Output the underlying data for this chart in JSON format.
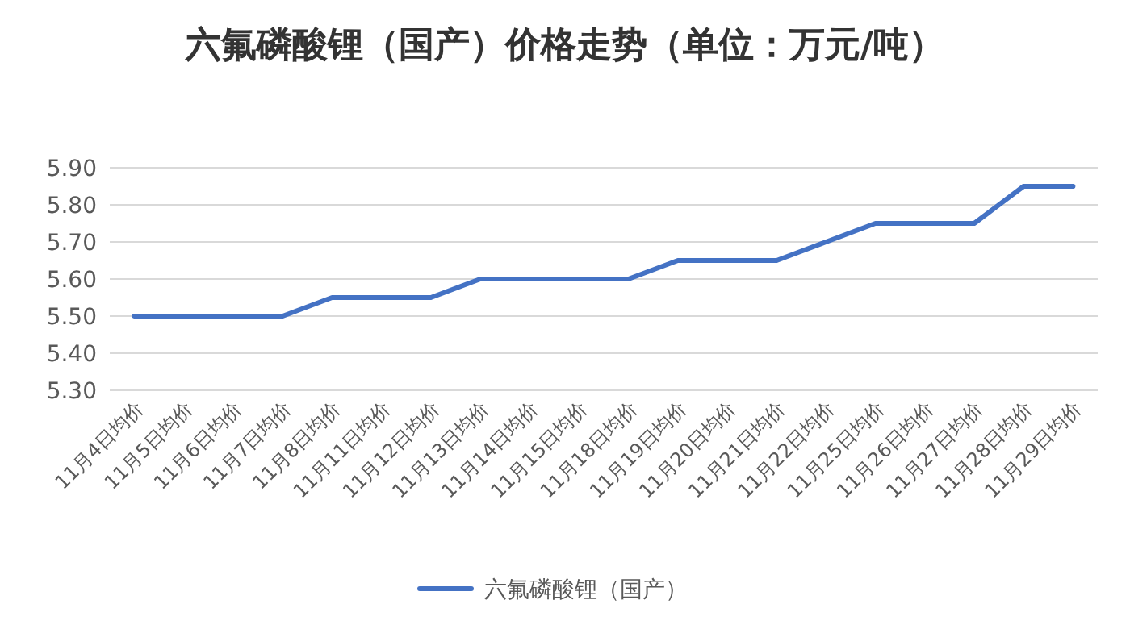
{
  "chart_data": {
    "type": "line",
    "title": "六氟磷酸锂（国产）价格走势（单位：万元/吨）",
    "categories": [
      "11月4日均价",
      "11月5日均价",
      "11月6日均价",
      "11月7日均价",
      "11月8日均价",
      "11月11日均价",
      "11月12日均价",
      "11月13日均价",
      "11月14日均价",
      "11月15日均价",
      "11月18日均价",
      "11月19日均价",
      "11月20日均价",
      "11月21日均价",
      "11月22日均价",
      "11月25日均价",
      "11月26日均价",
      "11月27日均价",
      "11月28日均价",
      "11月29日均价"
    ],
    "series": [
      {
        "name": "六氟磷酸锂（国产）",
        "color": "#4472c4",
        "values": [
          5.5,
          5.5,
          5.5,
          5.5,
          5.55,
          5.55,
          5.55,
          5.6,
          5.6,
          5.6,
          5.6,
          5.65,
          5.65,
          5.65,
          5.7,
          5.75,
          5.75,
          5.75,
          5.85,
          5.85
        ]
      }
    ],
    "ylim": [
      5.3,
      5.9
    ],
    "yticks": [
      {
        "value": 5.3,
        "label": "5.30"
      },
      {
        "value": 5.4,
        "label": "5.40"
      },
      {
        "value": 5.5,
        "label": "5.50"
      },
      {
        "value": 5.6,
        "label": "5.60"
      },
      {
        "value": 5.7,
        "label": "5.70"
      },
      {
        "value": 5.8,
        "label": "5.80"
      },
      {
        "value": 5.9,
        "label": "5.90"
      }
    ],
    "grid": "y",
    "legend": "bottom",
    "marker": "none",
    "line_style": "solid"
  }
}
